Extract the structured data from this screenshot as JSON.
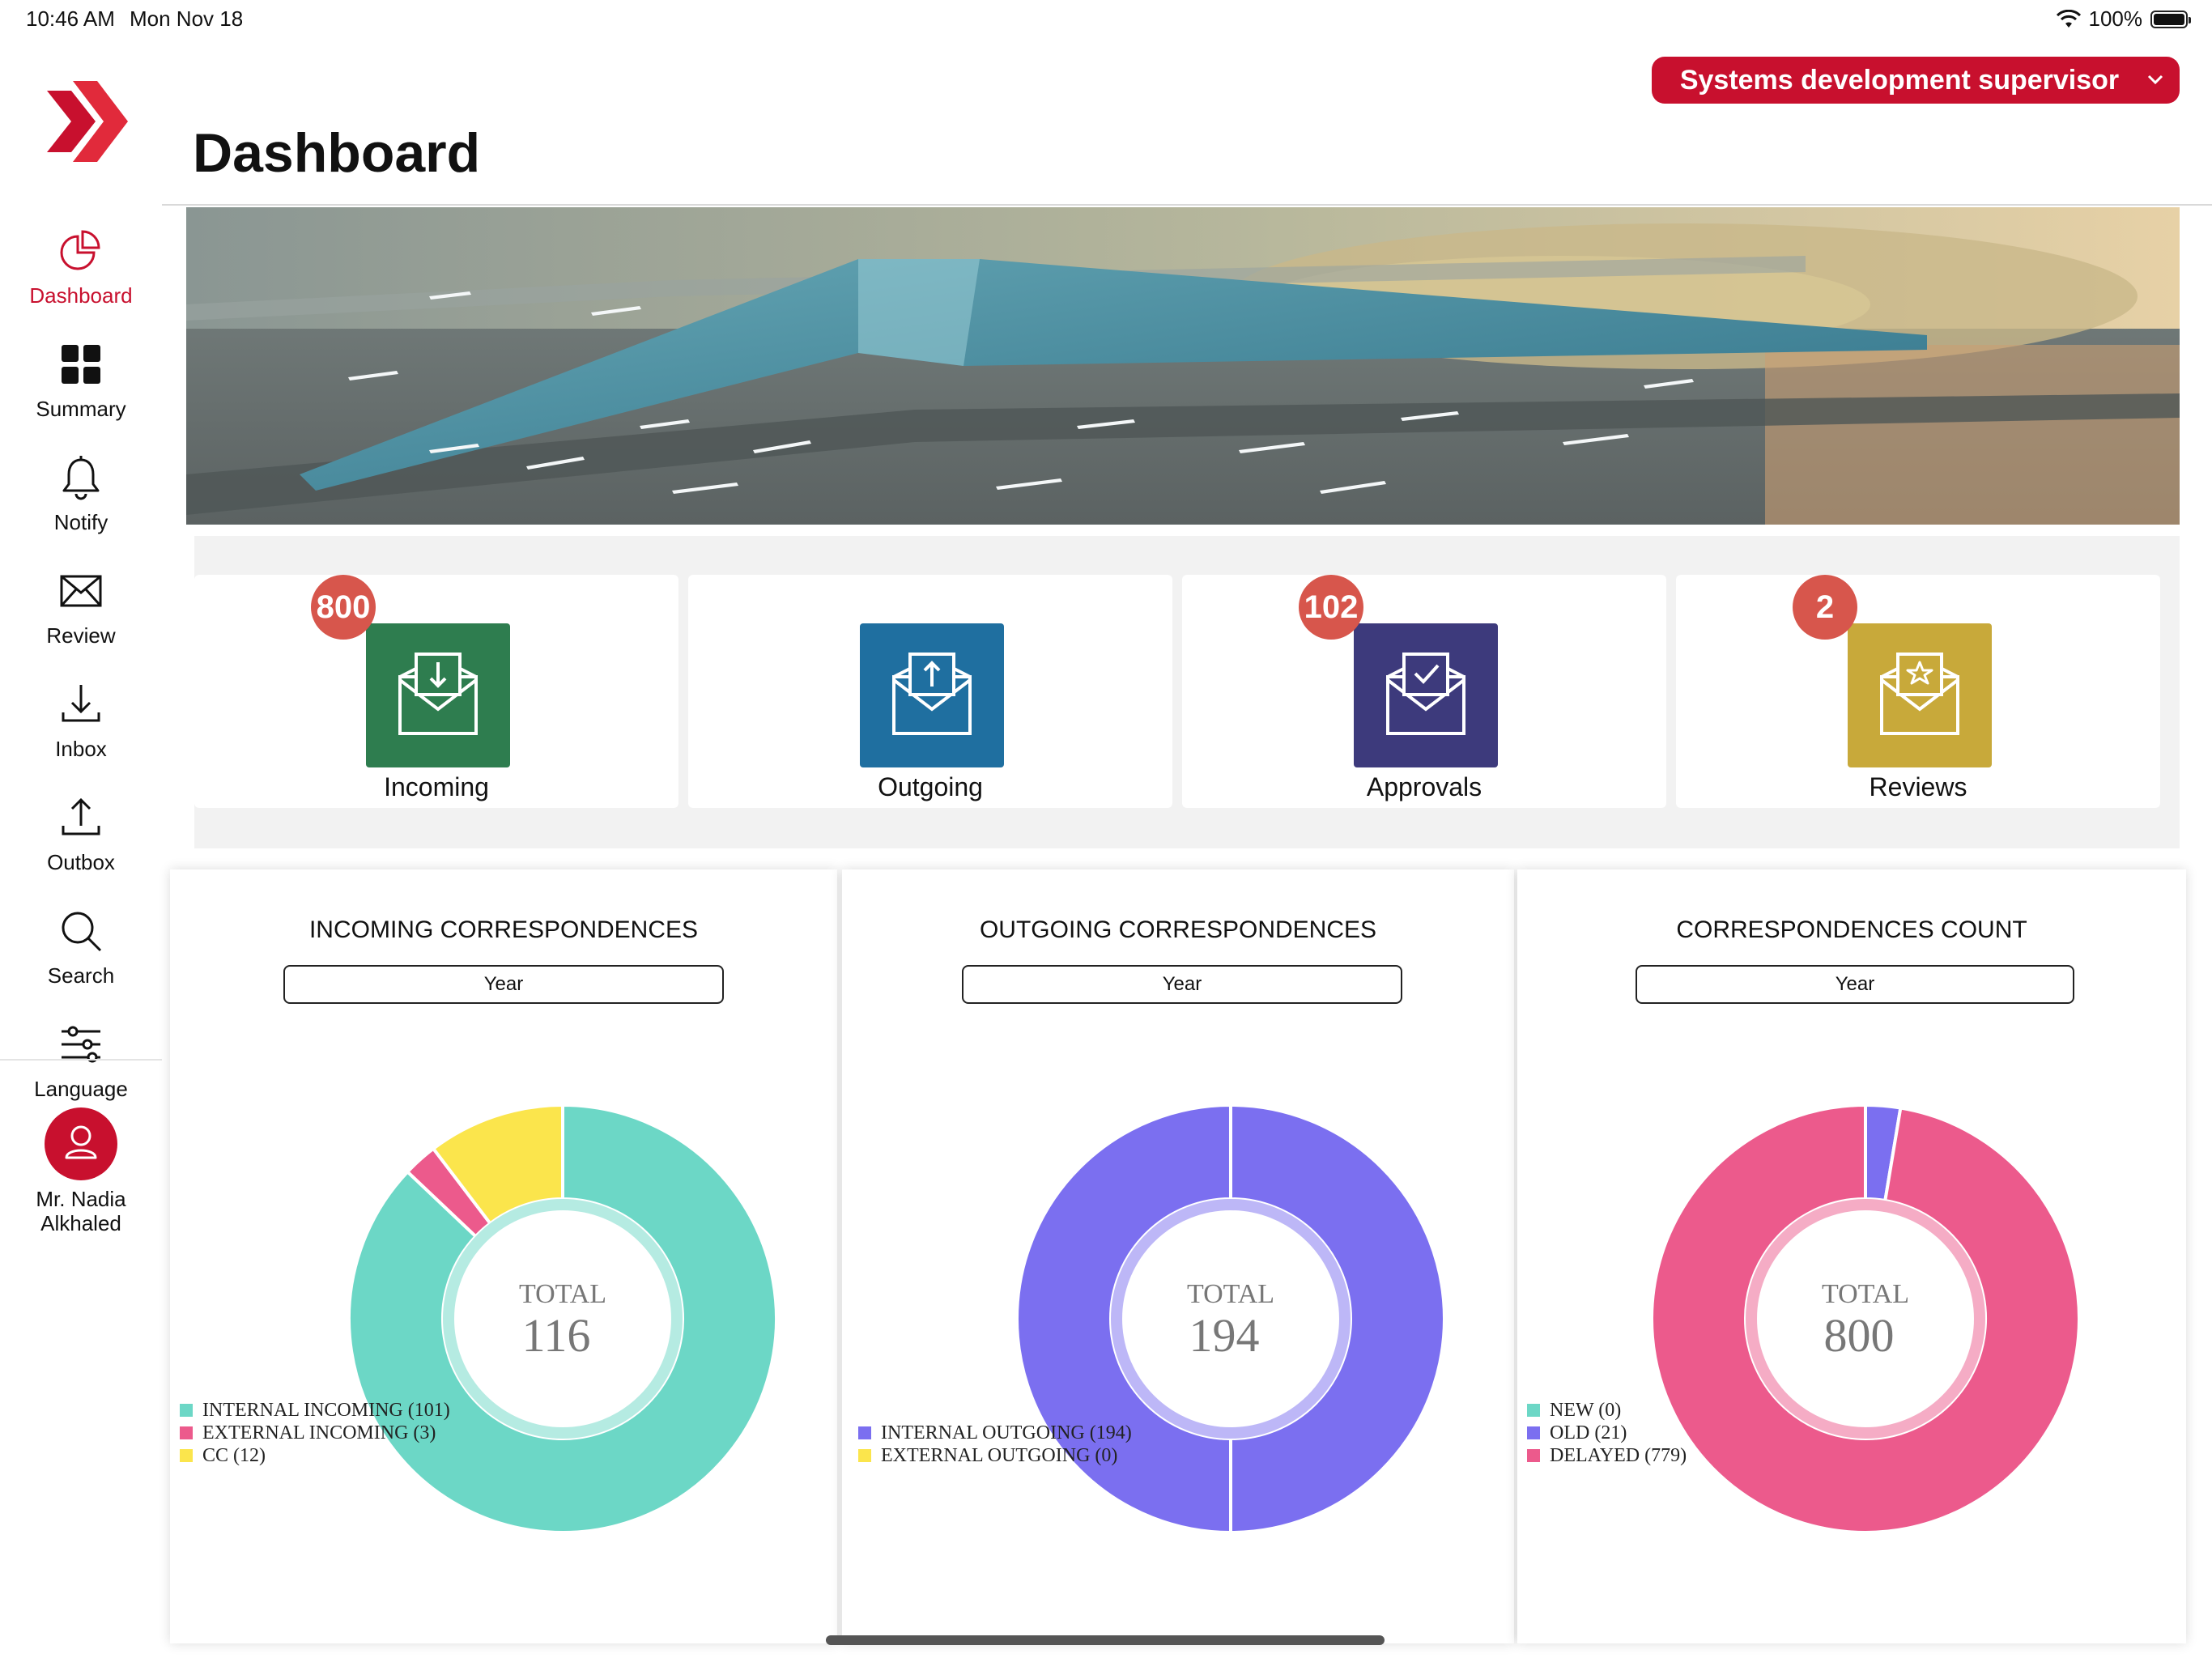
{
  "status_bar": {
    "time": "10:46 AM",
    "date": "Mon Nov 18",
    "battery": "100%"
  },
  "sidebar": {
    "items": [
      {
        "label": "Dashboard",
        "icon": "pie-chart-icon",
        "active": true
      },
      {
        "label": "Summary",
        "icon": "grid-icon"
      },
      {
        "label": "Notify",
        "icon": "bell-icon"
      },
      {
        "label": "Review",
        "icon": "mail-icon"
      },
      {
        "label": "Inbox",
        "icon": "download-icon"
      },
      {
        "label": "Outbox",
        "icon": "upload-icon"
      },
      {
        "label": "Search",
        "icon": "search-icon"
      },
      {
        "label": "Language",
        "icon": "sliders-icon"
      }
    ],
    "user": {
      "name_line1": "Mr. Nadia",
      "name_line2": "Alkhaled",
      "icon": "user-icon"
    }
  },
  "header": {
    "role": "Systems development supervisor",
    "title": "Dashboard"
  },
  "tiles": [
    {
      "label": "Incoming",
      "badge": "800",
      "color": "#2e7d4f",
      "icon": "mail-download-icon"
    },
    {
      "label": "Outgoing",
      "badge": "",
      "color": "#1f6fa0",
      "icon": "mail-upload-icon"
    },
    {
      "label": "Approvals",
      "badge": "102",
      "color": "#3d3a7c",
      "icon": "mail-check-icon"
    },
    {
      "label": "Reviews",
      "badge": "2",
      "color": "#c8a93a",
      "icon": "mail-star-icon"
    }
  ],
  "colors": {
    "brand_red": "#c8102e",
    "badge_red": "#d7564c"
  },
  "chart_data": [
    {
      "type": "pie",
      "title": "INCOMING CORRESPONDENCES",
      "period": "Year",
      "center_label": "TOTAL",
      "center_value": "116",
      "slices": [
        {
          "label": "INTERNAL INCOMING (101)",
          "value": 101,
          "color": "#6cd7c6"
        },
        {
          "label": "EXTERNAL INCOMING (3)",
          "value": 3,
          "color": "#ec5a8c"
        },
        {
          "label": "CC (12)",
          "value": 12,
          "color": "#fbe54c"
        }
      ]
    },
    {
      "type": "pie",
      "title": "OUTGOING CORRESPONDENCES",
      "period": "Year",
      "center_label": "TOTAL",
      "center_value": "194",
      "slices": [
        {
          "label": "INTERNAL OUTGOING (194)",
          "value": 194,
          "color": "#7b6ff0"
        },
        {
          "label": "EXTERNAL OUTGOING (0)",
          "value": 0,
          "color": "#fbe54c"
        }
      ]
    },
    {
      "type": "pie",
      "title": "CORRESPONDENCES COUNT",
      "period": "Year",
      "center_label": "TOTAL",
      "center_value": "800",
      "slices": [
        {
          "label": "NEW (0)",
          "value": 0,
          "color": "#6cd7c6"
        },
        {
          "label": "OLD (21)",
          "value": 21,
          "color": "#7b6ff0"
        },
        {
          "label": "DELAYED (779)",
          "value": 779,
          "color": "#ec5a8c"
        }
      ]
    }
  ]
}
